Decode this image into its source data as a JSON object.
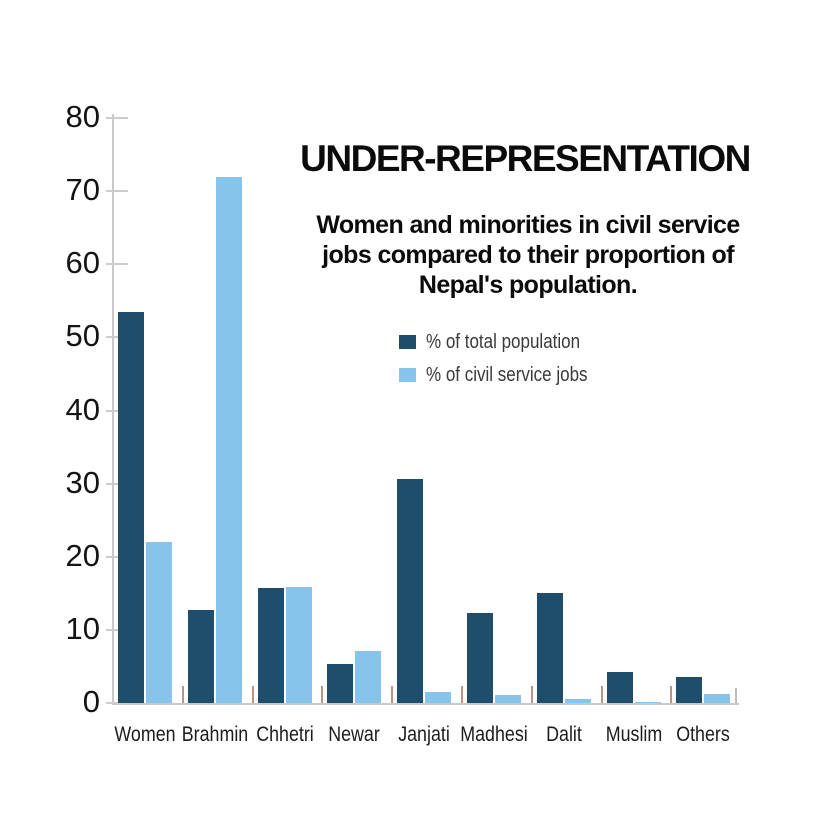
{
  "header": {
    "title": "UNDER-REPRESENTATION",
    "subtitle": "Women and minorities in civil service jobs compared to their proportion of Nepal's population.",
    "subtitle_lines": [
      "Women and minorities in civil service",
      "jobs compared to their proportion of",
      "Nepal's population."
    ]
  },
  "legend": {
    "items": [
      {
        "label": "% of total population",
        "color": "#1e4e6b"
      },
      {
        "label": "% of civil service jobs",
        "color": "#87c4eb"
      }
    ]
  },
  "chart_data": {
    "type": "bar",
    "title": "UNDER-REPRESENTATION",
    "subtitle": "Women and minorities in civil service jobs compared to their proportion of Nepal's population.",
    "categories": [
      "Women",
      "Brahmin",
      "Chhetri",
      "Newar",
      "Janjati",
      "Madhesi",
      "Dalit",
      "Muslim",
      "Others"
    ],
    "series": [
      {
        "name": "% of total population",
        "color": "#1e4e6b",
        "values": [
          53.5,
          12.7,
          15.7,
          5.3,
          30.7,
          12.3,
          15.0,
          4.2,
          3.6
        ]
      },
      {
        "name": "% of civil service jobs",
        "color": "#87c4eb",
        "values": [
          22,
          72,
          15.9,
          7.1,
          1.5,
          1.1,
          0.6,
          0.2,
          1.2
        ]
      }
    ],
    "xlabel": "",
    "ylabel": "",
    "ylim": [
      0,
      80
    ],
    "yticks": [
      0,
      10,
      20,
      30,
      40,
      50,
      60,
      70,
      80
    ],
    "grid": false,
    "legend_position": "upper-right-of-title"
  },
  "colors": {
    "background": "#ffffff",
    "axis": "#c9c9c9",
    "between_group_tick": "#b99588",
    "end_tick": "#bbbbbb",
    "text": "#141414"
  }
}
